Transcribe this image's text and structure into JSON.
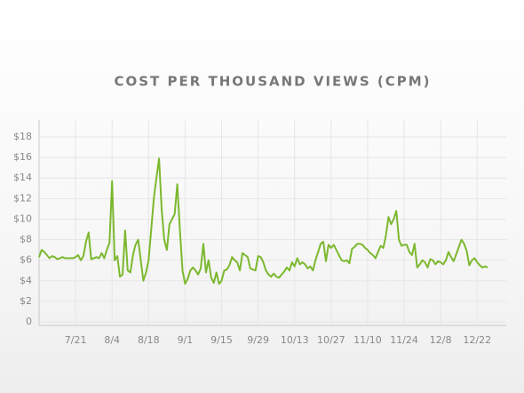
{
  "chart_data": {
    "type": "line",
    "title": "COST PER THOUSAND VIEWS (CPM)",
    "x": [
      "7/7",
      "7/8",
      "7/9",
      "7/10",
      "7/11",
      "7/12",
      "7/13",
      "7/14",
      "7/15",
      "7/16",
      "7/17",
      "7/18",
      "7/19",
      "7/20",
      "7/21",
      "7/22",
      "7/23",
      "7/24",
      "7/25",
      "7/26",
      "7/27",
      "7/28",
      "7/29",
      "7/30",
      "7/31",
      "8/1",
      "8/2",
      "8/3",
      "8/4",
      "8/5",
      "8/6",
      "8/7",
      "8/8",
      "8/9",
      "8/10",
      "8/11",
      "8/12",
      "8/13",
      "8/14",
      "8/15",
      "8/16",
      "8/17",
      "8/18",
      "8/19",
      "8/20",
      "8/21",
      "8/22",
      "8/23",
      "8/24",
      "8/25",
      "8/26",
      "8/27",
      "8/28",
      "8/29",
      "8/30",
      "8/31",
      "9/1",
      "9/2",
      "9/3",
      "9/4",
      "9/5",
      "9/6",
      "9/7",
      "9/8",
      "9/9",
      "9/10",
      "9/11",
      "9/12",
      "9/13",
      "9/14",
      "9/15",
      "9/16",
      "9/17",
      "9/18",
      "9/19",
      "9/20",
      "9/21",
      "9/22",
      "9/23",
      "9/24",
      "9/25",
      "9/26",
      "9/27",
      "9/28",
      "9/29",
      "9/30",
      "10/1",
      "10/2",
      "10/3",
      "10/4",
      "10/5",
      "10/6",
      "10/7",
      "10/8",
      "10/9",
      "10/10",
      "10/11",
      "10/12",
      "10/13",
      "10/14",
      "10/15",
      "10/16",
      "10/17",
      "10/18",
      "10/19",
      "10/20",
      "10/21",
      "10/22",
      "10/23",
      "10/24",
      "10/25",
      "10/26",
      "10/27",
      "10/28",
      "10/29",
      "10/30",
      "10/31",
      "11/1",
      "11/2",
      "11/3",
      "11/4",
      "11/5",
      "11/6",
      "11/7",
      "11/8",
      "11/9",
      "11/10",
      "11/11",
      "11/12",
      "11/13",
      "11/14",
      "11/15",
      "11/16",
      "11/17",
      "11/18",
      "11/19",
      "11/20",
      "11/21",
      "11/22",
      "11/23",
      "11/24",
      "11/25",
      "11/26",
      "11/27",
      "11/28",
      "11/29",
      "11/30",
      "12/1",
      "12/2",
      "12/3",
      "12/4",
      "12/5",
      "12/6",
      "12/7",
      "12/8",
      "12/9",
      "12/10",
      "12/11",
      "12/12",
      "12/13",
      "12/14",
      "12/15",
      "12/16",
      "12/17",
      "12/18",
      "12/19",
      "12/20",
      "12/21",
      "12/22",
      "12/23",
      "12/24",
      "12/25",
      "12/26"
    ],
    "series": [
      {
        "name": "CPM",
        "color": "#7cb82f",
        "values": [
          6.3,
          7.0,
          6.8,
          6.5,
          6.2,
          6.4,
          6.3,
          6.1,
          6.2,
          6.3,
          6.2,
          6.2,
          6.2,
          6.2,
          6.3,
          6.5,
          6.0,
          6.4,
          7.8,
          8.7,
          6.1,
          6.2,
          6.3,
          6.2,
          6.7,
          6.2,
          7.0,
          7.7,
          13.7,
          6.0,
          6.4,
          4.4,
          4.6,
          8.9,
          5.0,
          4.8,
          6.5,
          7.5,
          8.0,
          6.0,
          4.0,
          4.8,
          6.0,
          9.0,
          12.0,
          14.0,
          15.9,
          11.0,
          8.0,
          7.0,
          9.5,
          10.0,
          10.5,
          13.4,
          9.0,
          5.0,
          3.7,
          4.2,
          5.0,
          5.3,
          5.0,
          4.6,
          5.2,
          7.6,
          4.8,
          6.0,
          4.3,
          3.8,
          4.8,
          3.7,
          4.0,
          5.0,
          5.1,
          5.5,
          6.3,
          6.0,
          5.8,
          5.0,
          6.7,
          6.5,
          6.3,
          5.2,
          5.1,
          5.0,
          6.4,
          6.3,
          5.8,
          5.0,
          4.6,
          4.4,
          4.7,
          4.4,
          4.3,
          4.6,
          4.9,
          5.3,
          5.0,
          5.8,
          5.4,
          6.2,
          5.6,
          5.8,
          5.6,
          5.2,
          5.4,
          5.0,
          6.0,
          6.8,
          7.6,
          7.8,
          5.9,
          7.5,
          7.2,
          7.5,
          7.0,
          6.5,
          6.0,
          5.9,
          6.0,
          5.7,
          7.1,
          7.3,
          7.6,
          7.6,
          7.5,
          7.2,
          7.0,
          6.7,
          6.5,
          6.2,
          6.8,
          7.4,
          7.2,
          8.4,
          10.2,
          9.5,
          10.0,
          10.8,
          8.0,
          7.4,
          7.5,
          7.5,
          6.8,
          6.5,
          7.6,
          5.3,
          5.6,
          6.0,
          5.8,
          5.3,
          6.1,
          6.0,
          5.6,
          5.9,
          5.8,
          5.6,
          6.0,
          6.8,
          6.3,
          5.9,
          6.6,
          7.3,
          8.0,
          7.6,
          6.9,
          5.5,
          6.0,
          6.2,
          5.8,
          5.5,
          5.3,
          5.4,
          5.3
        ]
      }
    ],
    "xticks": [
      "7/21",
      "8/4",
      "8/18",
      "9/1",
      "9/15",
      "9/29",
      "10/13",
      "10/27",
      "11/10",
      "11/24",
      "12/8",
      "12/22"
    ],
    "ylim": [
      0,
      18
    ],
    "yticks": [
      0,
      {
        "value": 2,
        "label": "$2"
      },
      {
        "value": 4,
        "label": "$4"
      },
      {
        "value": 6,
        "label": "$6"
      },
      {
        "value": 8,
        "label": "$8"
      },
      {
        "value": 10,
        "label": "$10"
      },
      {
        "value": 12,
        "label": "$12"
      },
      {
        "value": 14,
        "label": "$14"
      },
      {
        "value": 16,
        "label": "$16"
      },
      {
        "value": 18,
        "label": "$18"
      }
    ],
    "grid": true
  }
}
